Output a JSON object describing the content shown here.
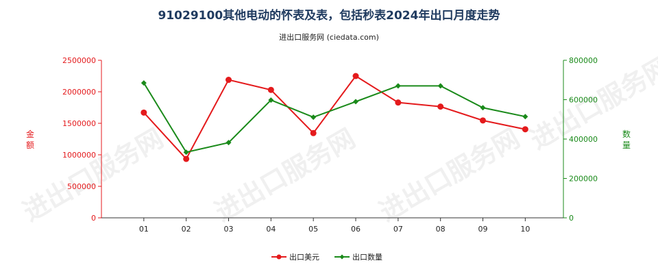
{
  "title": "91029100其他电动的怀表及表，包括秒表2024年出口月度走势",
  "subtitle": "进出口服务网 (ciedata.com)",
  "watermark": "进出口服务网",
  "colors": {
    "left_series": "#e41a1c",
    "right_series": "#1a8a1a",
    "title": "#1f3a5f"
  },
  "chart_data": {
    "type": "line",
    "categories": [
      "01",
      "02",
      "03",
      "04",
      "05",
      "06",
      "07",
      "08",
      "09",
      "10"
    ],
    "y_left": {
      "label": "金额",
      "ylim": [
        0,
        2500000
      ],
      "ticks": [
        0,
        500000,
        1000000,
        1500000,
        2000000,
        2500000
      ],
      "tick_labels": [
        "0",
        "500000",
        "1000000",
        "1500000",
        "2000000",
        "2500000"
      ]
    },
    "y_right": {
      "label": "数量",
      "ylim": [
        0,
        800000
      ],
      "ticks": [
        0,
        200000,
        400000,
        600000,
        800000
      ],
      "tick_labels": [
        "0",
        "200000",
        "400000",
        "600000",
        "800000"
      ]
    },
    "series": [
      {
        "name": "出口美元",
        "axis": "left",
        "color": "#e41a1c",
        "values": [
          1670000,
          935000,
          2190000,
          2030000,
          1345000,
          2250000,
          1830000,
          1765000,
          1545000,
          1405000
        ]
      },
      {
        "name": "出口数量",
        "axis": "right",
        "color": "#1a8a1a",
        "values": [
          685000,
          333000,
          382000,
          598000,
          511000,
          590000,
          670000,
          670000,
          559000,
          514000
        ]
      }
    ],
    "legend_position": "bottom-center",
    "grid": false
  }
}
